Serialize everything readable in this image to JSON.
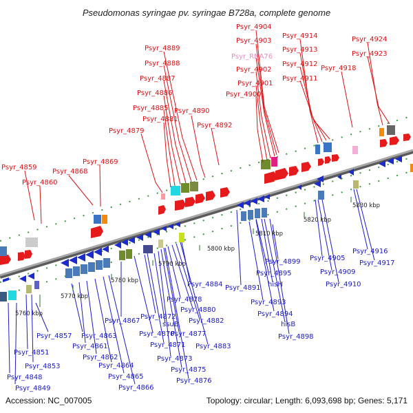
{
  "title": "Pseudomonas syringae pv. syringae B728a, complete genome",
  "footer": {
    "accession": "Accession: NC_007005",
    "summary": "Topology: circular; Length: 6,093,698 bp; Genes: 5,171"
  },
  "colors": {
    "forward_label": "#dd1111",
    "reverse_label": "#1a1acc",
    "rna_label": "#e88cc0",
    "backbone": "#888888",
    "tick": "#227722"
  },
  "ticks": [
    "5760 kbp",
    "5770 kbp",
    "5780 kbp",
    "5790 kbp",
    "5800 kbp",
    "5810 kbp",
    "5820 kbp",
    "5830 kbp"
  ],
  "forward_labels": [
    "Psyr_4904",
    "Psyr_4903",
    "Psyr_RNA76",
    "Psyr_4902",
    "Psyr_4901",
    "Psyr_4900",
    "Psyr_4914",
    "Psyr_4913",
    "Psyr_4912",
    "Psyr_4911",
    "Psyr_4924",
    "Psyr_4923",
    "Psyr_4918",
    "Psyr_4889",
    "Psyr_4888",
    "Psyr_4887",
    "Psyr_4886",
    "Psyr_4885",
    "Psyr_4890",
    "Psyr_4881",
    "Psyr_4892",
    "Psyr_4879",
    "Psyr_4869",
    "Psyr_4859",
    "Psyr_4868",
    "Psyr_4860"
  ],
  "reverse_labels": [
    "Psyr_4857",
    "Psyr_4863",
    "Psyr_4861",
    "Psyr_4851",
    "Psyr_4853",
    "Psyr_4862",
    "Psyr_4848",
    "Psyr_4864",
    "Psyr_4849",
    "Psyr_4865",
    "Psyr_4866",
    "Psyr_4867",
    "Psyr_4872",
    "ssuB",
    "Psyr_4870",
    "Psyr_4871",
    "Psyr_4873",
    "Psyr_4875",
    "Psyr_4876",
    "Psyr_4877",
    "Psyr_4878",
    "Psyr_4880",
    "Psyr_4882",
    "Psyr_4883",
    "Psyr_4884",
    "Psyr_4891",
    "Psyr_4895",
    "hisH",
    "Psyr_4893",
    "Psyr_4894",
    "hisB",
    "Psyr_4898",
    "Psyr_4899",
    "Psyr_4905",
    "Psyr_4909",
    "Psyr_4910",
    "Psyr_4916",
    "Psyr_4917"
  ]
}
